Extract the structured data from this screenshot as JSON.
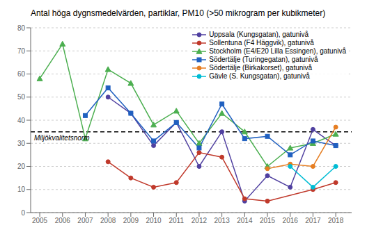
{
  "chart_data": {
    "type": "line",
    "title": "Antal höga dygnsmedelvärden, partiklar,  PM10 (>50 mikrogram per kubikmeter)",
    "x": [
      2005,
      2006,
      2007,
      2008,
      2009,
      2010,
      2011,
      2012,
      2013,
      2014,
      2015,
      2016,
      2017,
      2018
    ],
    "xlim": [
      2004.6,
      2018.7
    ],
    "xticks": [
      2005,
      2006,
      2007,
      2008,
      2009,
      2010,
      2011,
      2012,
      2013,
      2014,
      2015,
      2016,
      2017,
      2018
    ],
    "ylim": [
      0,
      80
    ],
    "yticks": [
      0,
      10,
      20,
      30,
      40,
      50,
      60,
      70,
      80
    ],
    "grid": "y",
    "legend": "upper right",
    "series": [
      {
        "name": "Uppsala (Kungsgatan), gatunivå",
        "color": "#5040a0",
        "marker": "circle",
        "values": [
          null,
          null,
          null,
          50,
          43,
          29,
          39,
          20,
          35,
          5,
          16,
          11,
          36,
          29
        ]
      },
      {
        "name": "Sollentuna (F4 Häggvik), gatunivå",
        "color": "#c0392b",
        "marker": "circle",
        "values": [
          null,
          null,
          null,
          22,
          15,
          11,
          13,
          26,
          24,
          6,
          5,
          null,
          10,
          13
        ]
      },
      {
        "name": "Stockholm (E4/E20 Lilla Essingen), gatunivå",
        "color": "#4caf50",
        "marker": "triangle",
        "values": [
          58,
          73,
          32,
          62,
          56,
          38,
          44,
          30,
          43,
          35,
          20,
          28,
          30,
          34
        ]
      },
      {
        "name": "Södertälje (Turingegatan), gatunivå",
        "color": "#2060c0",
        "marker": "square",
        "values": [
          null,
          null,
          42,
          54,
          43,
          31,
          39,
          28,
          47,
          32,
          33,
          25,
          31,
          29
        ]
      },
      {
        "name": "Södertälje (Birkakorset), gatunivå",
        "color": "#e67e22",
        "marker": "circle",
        "values": [
          null,
          null,
          null,
          null,
          null,
          null,
          null,
          null,
          null,
          null,
          19,
          21,
          20,
          37
        ]
      },
      {
        "name": "Gävle (S. Kungsgatan), gatunivå",
        "color": "#00bcd4",
        "marker": "circle",
        "values": [
          null,
          null,
          null,
          null,
          null,
          null,
          null,
          null,
          null,
          null,
          null,
          20,
          11,
          20
        ]
      }
    ],
    "annotations": [
      {
        "type": "hline",
        "y": 35,
        "text": "Miljökvalitetsnorm",
        "color": "#000000",
        "line_style": "dashed"
      }
    ]
  }
}
